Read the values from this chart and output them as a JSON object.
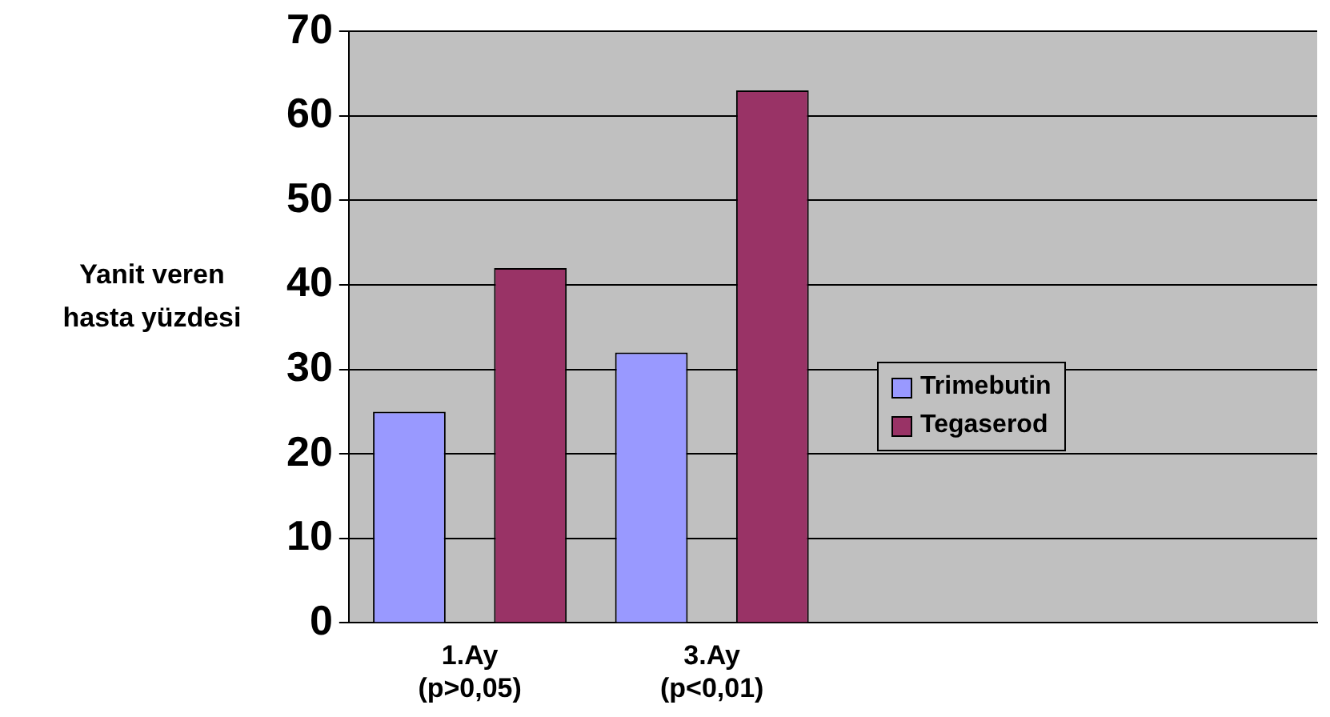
{
  "chart_data": {
    "type": "bar",
    "ylabel": "Yanit veren\nhasta yüzdesi",
    "categories": [
      "1.Ay\n(p>0,05)",
      "3.Ay\n(p<0,01)",
      null,
      null
    ],
    "series": [
      {
        "name": "Trimebutin",
        "color": "#9999ff",
        "values": [
          25,
          32,
          null,
          null
        ]
      },
      {
        "name": "Tegaserod",
        "color": "#993366",
        "values": [
          42,
          63,
          null,
          null
        ]
      }
    ],
    "ylim": [
      0,
      70
    ],
    "yticks": [
      0,
      10,
      20,
      30,
      40,
      50,
      60,
      70
    ],
    "grid": "y",
    "legend": "right"
  }
}
